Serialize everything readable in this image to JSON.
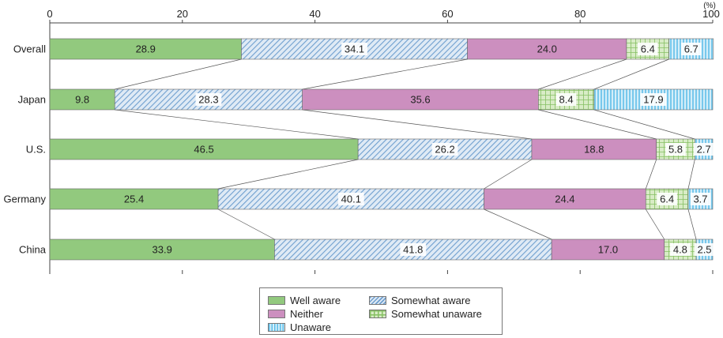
{
  "chart_data": {
    "type": "bar",
    "orientation": "horizontal-stacked-100",
    "unit_label": "(%)",
    "xlim": [
      0,
      100
    ],
    "x_ticks": [
      "0",
      "20",
      "40",
      "60",
      "80",
      "100"
    ],
    "categories": [
      "Overall",
      "Japan",
      "U.S.",
      "Germany",
      "China"
    ],
    "series": [
      {
        "name": "Well aware",
        "values": [
          28.9,
          9.8,
          46.5,
          25.4,
          33.9
        ],
        "labels": [
          "28.9",
          "9.8",
          "46.5",
          "25.4",
          "33.9"
        ],
        "color": "#92c97e",
        "pattern": "solid"
      },
      {
        "name": "Somewhat aware",
        "values": [
          34.1,
          28.3,
          26.2,
          40.1,
          41.8
        ],
        "labels": [
          "34.1",
          "28.3",
          "26.2",
          "40.1",
          "41.8"
        ],
        "color": "#8fb7dc",
        "pattern": "diagonal"
      },
      {
        "name": "Neither",
        "values": [
          24.0,
          35.6,
          18.8,
          24.4,
          17.0
        ],
        "labels": [
          "24.0",
          "35.6",
          "18.8",
          "24.4",
          "17.0"
        ],
        "color": "#cc8fbf",
        "pattern": "solid"
      },
      {
        "name": "Somewhat unaware",
        "values": [
          6.4,
          8.4,
          5.8,
          6.4,
          4.8
        ],
        "labels": [
          "6.4",
          "8.4",
          "5.8",
          "6.4",
          "4.8"
        ],
        "color": "#a8d48a",
        "pattern": "grid"
      },
      {
        "name": "Unaware",
        "values": [
          6.7,
          17.9,
          2.7,
          3.7,
          2.5
        ],
        "labels": [
          "6.7",
          "17.9",
          "2.7",
          "3.7",
          "2.5"
        ],
        "color": "#8fd3f0",
        "pattern": "vertical"
      }
    ],
    "legend_order": [
      "Well aware",
      "Somewhat aware",
      "Neither",
      "Somewhat unaware",
      "Unaware"
    ],
    "legend_position": "bottom-center",
    "connector_lines": true,
    "grid": false
  }
}
